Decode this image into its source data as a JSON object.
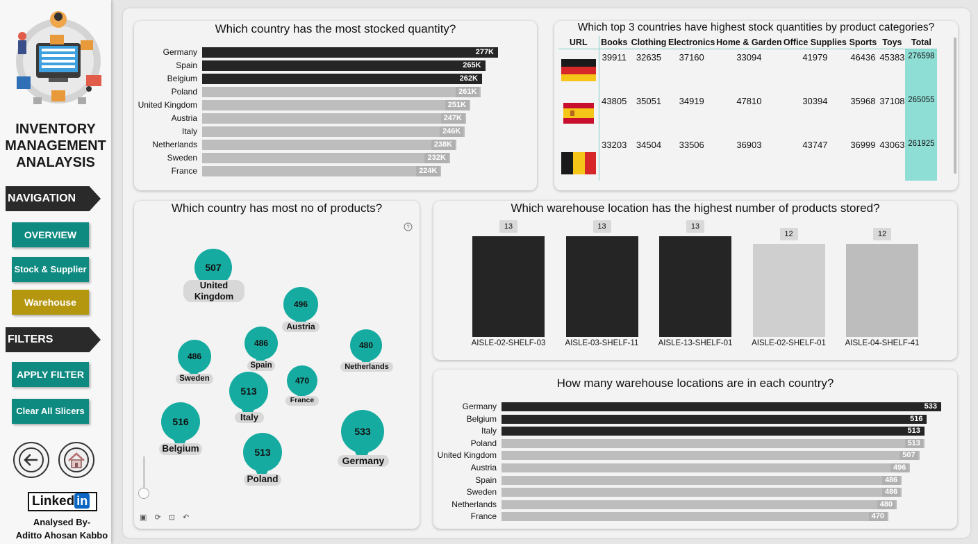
{
  "sidebar": {
    "title_lines": [
      "INVENTORY",
      "MANAGEMENT",
      "ANALAYSIS"
    ],
    "nav_section": "NAVIGATION",
    "nav_buttons": [
      "OVERVIEW",
      "Stock & Supplier",
      "Warehouse"
    ],
    "filters_section": "FILTERS",
    "filter_buttons": [
      "APPLY FILTER",
      "Clear All Slicers"
    ],
    "back_icon": "back-arrow-icon",
    "home_icon": "home-icon",
    "linkedin": {
      "text": "Linked",
      "badge": "in"
    },
    "analysed_by": "Analysed By-",
    "author": "Aditto Ahosan Kabbo"
  },
  "stock_chart": {
    "title": "Which country has the most stocked quantity?",
    "bars": [
      {
        "country": "Germany",
        "label": "277K",
        "value": 277,
        "highlight": true
      },
      {
        "country": "Spain",
        "label": "265K",
        "value": 265,
        "highlight": true
      },
      {
        "country": "Belgium",
        "label": "262K",
        "value": 262,
        "highlight": true
      },
      {
        "country": "Poland",
        "label": "261K",
        "value": 261,
        "highlight": false
      },
      {
        "country": "United Kingdom",
        "label": "251K",
        "value": 251,
        "highlight": false
      },
      {
        "country": "Austria",
        "label": "247K",
        "value": 247,
        "highlight": false
      },
      {
        "country": "Italy",
        "label": "246K",
        "value": 246,
        "highlight": false
      },
      {
        "country": "Netherlands",
        "label": "238K",
        "value": 238,
        "highlight": false
      },
      {
        "country": "Sweden",
        "label": "232K",
        "value": 232,
        "highlight": false
      },
      {
        "country": "France",
        "label": "224K",
        "value": 224,
        "highlight": false
      }
    ]
  },
  "matrix": {
    "title": "Which top 3 countries have highest stock quantities by product categories?",
    "columns": [
      "URL",
      "Books",
      "Clothing",
      "Electronics",
      "Home & Garden",
      "Office Supplies",
      "Sports",
      "Toys",
      "Total"
    ],
    "rows": [
      {
        "flag": "germany",
        "values": [
          "39911",
          "32635",
          "37160",
          "33094",
          "41979",
          "46436",
          "45383"
        ],
        "total": "276598"
      },
      {
        "flag": "spain",
        "values": [
          "43805",
          "35051",
          "34919",
          "47810",
          "30394",
          "35968",
          "37108"
        ],
        "total": "265055"
      },
      {
        "flag": "belgium",
        "values": [
          "33203",
          "34504",
          "33506",
          "36903",
          "43747",
          "36999",
          "43063"
        ],
        "total": "261925"
      }
    ]
  },
  "map": {
    "title": "Which country has most no of products?",
    "help_icon": "help-icon",
    "pins": [
      {
        "country": "United Kingdom",
        "label_lines": [
          "United",
          "Kingdom"
        ],
        "value": "507"
      },
      {
        "country": "Austria",
        "label_lines": [
          "Austria"
        ],
        "value": "496"
      },
      {
        "country": "Netherlands",
        "label_lines": [
          "Netherlands"
        ],
        "value": "480"
      },
      {
        "country": "Sweden",
        "label_lines": [
          "Sweden"
        ],
        "value": "486"
      },
      {
        "country": "Spain",
        "label_lines": [
          "Spain"
        ],
        "value": "486"
      },
      {
        "country": "France",
        "label_lines": [
          "France"
        ],
        "value": "470"
      },
      {
        "country": "Italy",
        "label_lines": [
          "Italy"
        ],
        "value": "513"
      },
      {
        "country": "Belgium",
        "label_lines": [
          "Belgium"
        ],
        "value": "516"
      },
      {
        "country": "Poland",
        "label_lines": [
          "Poland"
        ],
        "value": "513"
      },
      {
        "country": "Germany",
        "label_lines": [
          "Germany"
        ],
        "value": "533"
      }
    ]
  },
  "warehouse_chart": {
    "title": "Which warehouse location has the highest number of products stored?",
    "columns": [
      {
        "location": "AISLE-02-SHELF-03",
        "value": 13,
        "highlight": true
      },
      {
        "location": "AISLE-03-SHELF-11",
        "value": 13,
        "highlight": true
      },
      {
        "location": "AISLE-13-SHELF-01",
        "value": 13,
        "highlight": true
      },
      {
        "location": "AISLE-02-SHELF-01",
        "value": 12,
        "highlight": false
      },
      {
        "location": "AISLE-04-SHELF-41",
        "value": 12,
        "highlight": false
      }
    ]
  },
  "locations_chart": {
    "title": "How many warehouse locations are in each country?",
    "bars": [
      {
        "country": "Germany",
        "value": 533,
        "highlight": true
      },
      {
        "country": "Belgium",
        "value": 516,
        "highlight": true
      },
      {
        "country": "Italy",
        "value": 513,
        "highlight": true
      },
      {
        "country": "Poland",
        "value": 513,
        "highlight": false
      },
      {
        "country": "United Kingdom",
        "value": 507,
        "highlight": false
      },
      {
        "country": "Austria",
        "value": 496,
        "highlight": false
      },
      {
        "country": "Spain",
        "value": 486,
        "highlight": false
      },
      {
        "country": "Sweden",
        "value": 486,
        "highlight": false
      },
      {
        "country": "Netherlands",
        "value": 480,
        "highlight": false
      },
      {
        "country": "France",
        "value": 470,
        "highlight": false
      }
    ]
  },
  "colors": {
    "accent_teal": "#0e8a80",
    "map_teal": "#16aba0",
    "gold": "#b5960f",
    "highlight_bar": "#252525",
    "normal_bar": "#bdbdbd",
    "total_column": "#8fded6"
  }
}
